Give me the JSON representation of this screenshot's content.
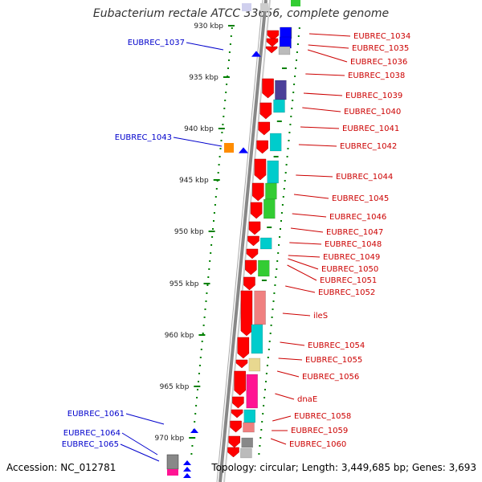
{
  "title": "Eubacterium rectale ATCC 33656, complete genome",
  "footer": {
    "accession": "Accession: NC_012781",
    "topology": "Topology: circular; Length: 3,449,685 bp; Genes: 3,693"
  },
  "colors": {
    "cds": "#ff0000",
    "right_label": "#cc0000",
    "left_label": "#0000cc",
    "backbone": "#888888",
    "tick": "#008000",
    "blue": "#0000ff",
    "cyan": "#00cccc",
    "green": "#33cc33",
    "pink": "#f08080",
    "magenta": "#ff1493",
    "purple": "#4b3f99",
    "orange": "#ff8c00",
    "khaki": "#e8d890",
    "grey": "#888888"
  },
  "kbp_labels": [
    "930 kbp",
    "935 kbp",
    "940 kbp",
    "945 kbp",
    "950 kbp",
    "955 kbp",
    "960 kbp",
    "965 kbp",
    "970 kbp"
  ],
  "right_labels": [
    "EUBREC_1034",
    "EUBREC_1035",
    "EUBREC_1036",
    "EUBREC_1038",
    "EUBREC_1039",
    "EUBREC_1040",
    "EUBREC_1041",
    "EUBREC_1042",
    "EUBREC_1044",
    "EUBREC_1045",
    "EUBREC_1046",
    "EUBREC_1047",
    "EUBREC_1048",
    "EUBREC_1049",
    "EUBREC_1050",
    "EUBREC_1051",
    "EUBREC_1052",
    "ileS",
    "EUBREC_1054",
    "EUBREC_1055",
    "EUBREC_1056",
    "dnaE",
    "EUBREC_1058",
    "EUBREC_1059",
    "EUBREC_1060"
  ],
  "left_labels": [
    "EUBREC_1037",
    "EUBREC_1043",
    "EUBREC_1061",
    "EUBREC_1064",
    "EUBREC_1065"
  ]
}
